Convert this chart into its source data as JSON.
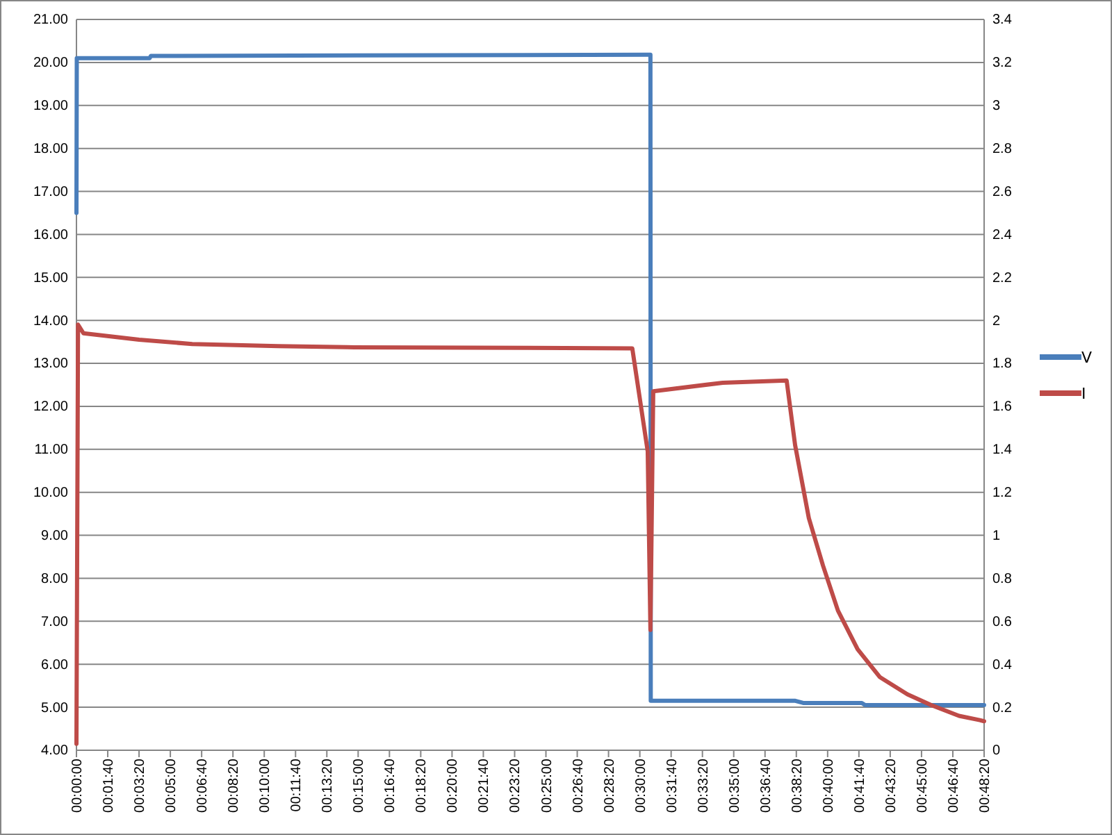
{
  "chart_data": {
    "type": "line",
    "xlim": [
      0,
      0.805556
    ],
    "xticks": [
      {
        "value": 0,
        "label": "00:00:00"
      },
      {
        "value": 0.027778,
        "label": "00:01:40"
      },
      {
        "value": 0.055556,
        "label": "00:03:20"
      },
      {
        "value": 0.083333,
        "label": "00:05:00"
      },
      {
        "value": 0.111111,
        "label": "00:06:40"
      },
      {
        "value": 0.138889,
        "label": "00:08:20"
      },
      {
        "value": 0.166667,
        "label": "00:10:00"
      },
      {
        "value": 0.194444,
        "label": "00:11:40"
      },
      {
        "value": 0.222222,
        "label": "00:13:20"
      },
      {
        "value": 0.25,
        "label": "00:15:00"
      },
      {
        "value": 0.277778,
        "label": "00:16:40"
      },
      {
        "value": 0.305556,
        "label": "00:18:20"
      },
      {
        "value": 0.333333,
        "label": "00:20:00"
      },
      {
        "value": 0.361111,
        "label": "00:21:40"
      },
      {
        "value": 0.388889,
        "label": "00:23:20"
      },
      {
        "value": 0.416667,
        "label": "00:25:00"
      },
      {
        "value": 0.444444,
        "label": "00:26:40"
      },
      {
        "value": 0.472222,
        "label": "00:28:20"
      },
      {
        "value": 0.5,
        "label": "00:30:00"
      },
      {
        "value": 0.527778,
        "label": "00:31:40"
      },
      {
        "value": 0.555556,
        "label": "00:33:20"
      },
      {
        "value": 0.583333,
        "label": "00:35:00"
      },
      {
        "value": 0.611111,
        "label": "00:36:40"
      },
      {
        "value": 0.638889,
        "label": "00:38:20"
      },
      {
        "value": 0.666667,
        "label": "00:40:00"
      },
      {
        "value": 0.694444,
        "label": "00:41:40"
      },
      {
        "value": 0.722222,
        "label": "00:43:20"
      },
      {
        "value": 0.75,
        "label": "00:45:00"
      },
      {
        "value": 0.777778,
        "label": "00:46:40"
      },
      {
        "value": 0.805556,
        "label": "00:48:20"
      }
    ],
    "ylim": [
      4,
      21
    ],
    "yticks": [
      {
        "value": 4,
        "label": "4.00"
      },
      {
        "value": 5,
        "label": "5.00"
      },
      {
        "value": 6,
        "label": "6.00"
      },
      {
        "value": 7,
        "label": "7.00"
      },
      {
        "value": 8,
        "label": "8.00"
      },
      {
        "value": 9,
        "label": "9.00"
      },
      {
        "value": 10,
        "label": "10.00"
      },
      {
        "value": 11,
        "label": "11.00"
      },
      {
        "value": 12,
        "label": "12.00"
      },
      {
        "value": 13,
        "label": "13.00"
      },
      {
        "value": 14,
        "label": "14.00"
      },
      {
        "value": 15,
        "label": "15.00"
      },
      {
        "value": 16,
        "label": "16.00"
      },
      {
        "value": 17,
        "label": "17.00"
      },
      {
        "value": 18,
        "label": "18.00"
      },
      {
        "value": 19,
        "label": "19.00"
      },
      {
        "value": 20,
        "label": "20.00"
      },
      {
        "value": 21,
        "label": "21.00"
      }
    ],
    "y2lim": [
      0,
      3.4
    ],
    "y2ticks": [
      0,
      0.2,
      0.4,
      0.6,
      0.8,
      1,
      1.2,
      1.4,
      1.6,
      1.8,
      2,
      2.2,
      2.4,
      2.6,
      2.8,
      3,
      3.2,
      3.4
    ],
    "grid": "y",
    "legend": "right",
    "series": [
      {
        "name": "V",
        "color": "#4a7ebb",
        "x": [
          0,
          0.0003,
          0.065,
          0.066,
          0.507,
          0.5094,
          0.5097,
          0.638,
          0.645,
          0.697,
          0.7,
          0.805556
        ],
        "values": [
          16.5,
          20.1,
          20.1,
          20.15,
          20.18,
          20.18,
          5.15,
          5.15,
          5.1,
          5.1,
          5.05,
          5.05
        ]
      },
      {
        "name": "I",
        "color": "#be4b48",
        "axis": "y2",
        "x": [
          0,
          0.0014,
          0.0062,
          0.0556,
          0.1028,
          0.179,
          0.24,
          0.4933,
          0.507,
          0.5094,
          0.5119,
          0.5736,
          0.6303,
          0.6378,
          0.65,
          0.6625,
          0.6758,
          0.6933,
          0.7131,
          0.7375,
          0.7586,
          0.7833,
          0.8017,
          0.805556
        ],
        "values": [
          0.03,
          1.98,
          1.94,
          1.91,
          1.89,
          1.88,
          1.875,
          1.87,
          1.39,
          0.56,
          1.67,
          1.71,
          1.72,
          1.42,
          1.08,
          0.86,
          0.65,
          0.47,
          0.34,
          0.26,
          0.21,
          0.16,
          0.14,
          0.135
        ]
      }
    ]
  }
}
